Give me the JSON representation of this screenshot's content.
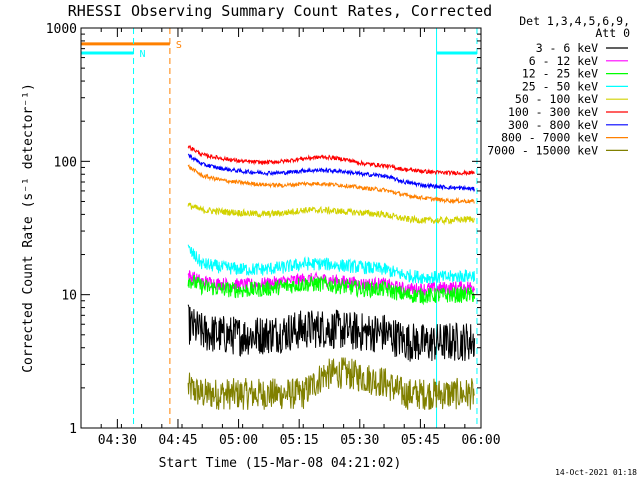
{
  "chart_data": {
    "type": "line",
    "title": "RHESSI Observing Summary Count Rates, Corrected",
    "xlabel": "Start Time (15-Mar-08 04:21:02)",
    "ylabel": "Corrected Count Rate (s⁻¹ detector⁻¹)",
    "y_scale": "log",
    "ylim": [
      1,
      1000
    ],
    "y_ticks": [
      {
        "value": 1,
        "label": "1"
      },
      {
        "value": 10,
        "label": "10"
      },
      {
        "value": 100,
        "label": "100"
      },
      {
        "value": 1000,
        "label": "1000"
      }
    ],
    "x_range_min": [
      0,
      99
    ],
    "x_ticks": [
      {
        "min": 9,
        "label": "04:30"
      },
      {
        "min": 24,
        "label": "04:45"
      },
      {
        "min": 39,
        "label": "05:00"
      },
      {
        "min": 54,
        "label": "05:15"
      },
      {
        "min": 69,
        "label": "05:30"
      },
      {
        "min": 84,
        "label": "05:45"
      },
      {
        "min": 99,
        "label": "06:00"
      }
    ],
    "grid": false,
    "legend_placement": "right",
    "legend_header": [
      "Det 1,3,4,5,6,9,",
      "Att 0"
    ],
    "data_start_min": 26.5,
    "data_end_min": 97.5,
    "series": [
      {
        "name": "3 - 6 keV",
        "color": "#000000",
        "x": [
          26.5,
          30,
          35,
          40,
          45,
          50,
          55,
          60,
          65,
          70,
          75,
          80,
          85,
          90,
          97.5
        ],
        "values": [
          6,
          5.2,
          5,
          4.9,
          5,
          5.2,
          5.5,
          5.6,
          5.4,
          5.2,
          5.2,
          4.5,
          4.3,
          4.4,
          4.5
        ],
        "noise": 0.15
      },
      {
        "name": "6 - 12 keV",
        "color": "#ff00ff",
        "x": [
          26.5,
          30,
          35,
          40,
          45,
          50,
          55,
          60,
          65,
          70,
          75,
          80,
          85,
          90,
          97.5
        ],
        "values": [
          14,
          12.5,
          12,
          11.8,
          12,
          12.5,
          13,
          13,
          12.5,
          12,
          12,
          11,
          11,
          11.2,
          11.5
        ],
        "noise": 0.05
      },
      {
        "name": "12 - 25 keV",
        "color": "#00ff00",
        "x": [
          26.5,
          30,
          35,
          40,
          45,
          50,
          55,
          60,
          65,
          70,
          75,
          80,
          85,
          90,
          97.5
        ],
        "values": [
          13,
          11.5,
          11,
          10.8,
          11,
          11.5,
          12,
          12,
          11.5,
          11,
          11,
          10,
          9.8,
          9.9,
          10
        ],
        "noise": 0.06
      },
      {
        "name": "25 - 50 keV",
        "color": "#00ffff",
        "x": [
          26.5,
          30,
          35,
          40,
          45,
          50,
          55,
          60,
          65,
          70,
          75,
          80,
          85,
          90,
          97.5
        ],
        "values": [
          22,
          17,
          16,
          15.5,
          15.5,
          16,
          17,
          17,
          16.5,
          16,
          15.5,
          14,
          13.5,
          13.5,
          14
        ],
        "noise": 0.05
      },
      {
        "name": "50 - 100 keV",
        "color": "#d2d200",
        "x": [
          26.5,
          30,
          35,
          40,
          45,
          50,
          55,
          60,
          65,
          70,
          75,
          80,
          85,
          90,
          97.5
        ],
        "values": [
          47,
          43,
          42,
          41,
          40,
          41,
          43,
          43,
          42,
          41,
          40,
          37,
          36,
          36,
          37
        ],
        "noise": 0.025
      },
      {
        "name": "100 - 300 keV",
        "color": "#ff0000",
        "x": [
          26.5,
          30,
          35,
          40,
          45,
          50,
          55,
          60,
          65,
          70,
          75,
          80,
          85,
          90,
          97.5
        ],
        "values": [
          130,
          112,
          105,
          100,
          98,
          100,
          105,
          108,
          104,
          96,
          93,
          87,
          84,
          82,
          82
        ],
        "noise": 0.015
      },
      {
        "name": "300 - 800 keV",
        "color": "#0000ff",
        "x": [
          26.5,
          30,
          35,
          40,
          45,
          50,
          55,
          60,
          65,
          70,
          75,
          80,
          85,
          90,
          97.5
        ],
        "values": [
          112,
          95,
          88,
          84,
          82,
          82,
          85,
          86,
          84,
          80,
          78,
          70,
          66,
          64,
          62
        ],
        "noise": 0.015
      },
      {
        "name": "800 - 7000 keV",
        "color": "#ff8000",
        "x": [
          26.5,
          30,
          35,
          40,
          45,
          50,
          55,
          60,
          65,
          70,
          75,
          80,
          85,
          90,
          97.5
        ],
        "values": [
          92,
          78,
          72,
          69,
          67,
          66,
          68,
          68,
          66,
          63,
          61,
          56,
          53,
          51,
          50
        ],
        "noise": 0.015
      },
      {
        "name": "7000 - 15000 keV",
        "color": "#808000",
        "x": [
          26.5,
          30,
          35,
          40,
          45,
          50,
          55,
          60,
          65,
          70,
          75,
          80,
          85,
          90,
          97.5
        ],
        "values": [
          2,
          1.8,
          1.8,
          1.8,
          1.8,
          1.8,
          1.8,
          2.5,
          2.6,
          2.4,
          2.2,
          1.8,
          1.8,
          1.8,
          1.8
        ],
        "noise": 0.12
      }
    ],
    "annotations": [
      {
        "type": "flag_bar",
        "label": "N",
        "color": "#00ffff",
        "x_start": 0,
        "x_end": 13,
        "y": 650
      },
      {
        "type": "flag_bar",
        "label": "S",
        "color": "#ff8000",
        "x_start": 0,
        "x_end": 22,
        "y": 760
      },
      {
        "type": "flag_bar",
        "label": "",
        "color": "#00ffff",
        "x_start": 88,
        "x_end": 98,
        "y": 650
      },
      {
        "type": "vline",
        "style": "dashed",
        "color": "#00ffff",
        "x": 13
      },
      {
        "type": "vline",
        "style": "dashed",
        "color": "#ff8000",
        "x": 22
      },
      {
        "type": "vline",
        "style": "solid",
        "color": "#00ffff",
        "x": 88
      },
      {
        "type": "vline",
        "style": "dashed",
        "color": "#00ffff",
        "x": 98
      }
    ]
  },
  "footer": {
    "timestamp": "14-Oct-2021 01:18"
  }
}
